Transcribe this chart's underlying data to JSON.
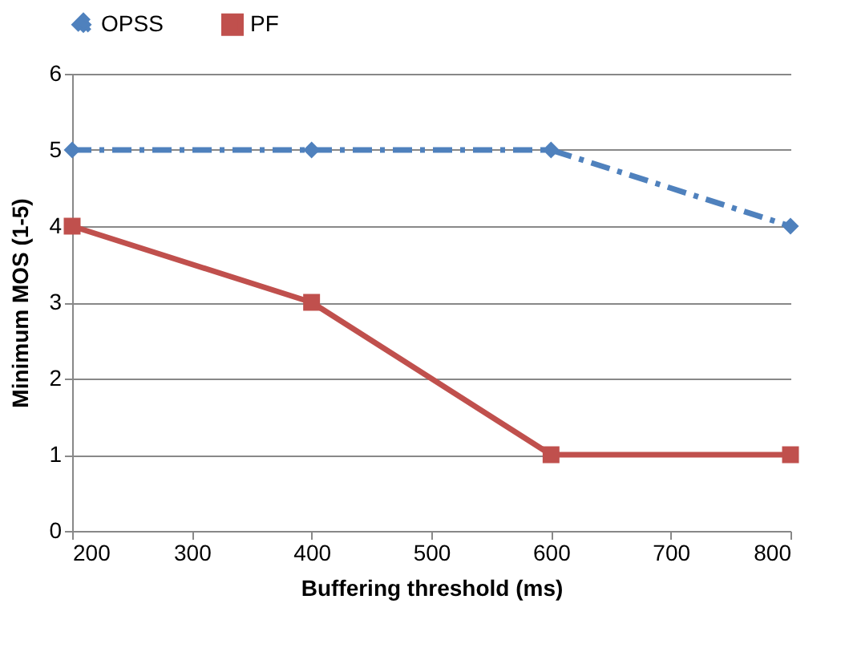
{
  "chart_data": {
    "type": "line",
    "xlabel": "Buffering threshold (ms)",
    "ylabel": "Minimum MOS (1-5)",
    "x": [
      200,
      400,
      600,
      800
    ],
    "series": [
      {
        "name": "OPSS",
        "color": "#4f81bd",
        "values": [
          5,
          5,
          5,
          4
        ],
        "marker": "diamond",
        "line_style": "dashed"
      },
      {
        "name": "PF",
        "color": "#c0504d",
        "values": [
          4,
          3,
          1,
          1
        ],
        "marker": "square",
        "line_style": "solid"
      }
    ],
    "xlim": [
      200,
      800
    ],
    "xticks": [
      200,
      300,
      400,
      500,
      600,
      700,
      800
    ],
    "ylim": [
      0,
      6
    ],
    "yticks": [
      0,
      1,
      2,
      3,
      4,
      5,
      6
    ],
    "grid": "y",
    "legend": "top"
  }
}
